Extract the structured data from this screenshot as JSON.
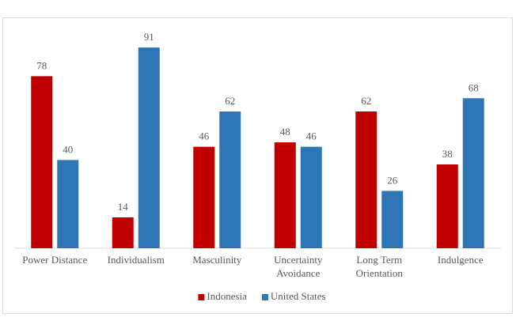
{
  "chart_data": {
    "type": "bar",
    "categories": [
      "Power Distance",
      "Individualism",
      "Masculinity",
      "Uncertainty Avoidance",
      "Long Term Orientation",
      "Indulgence"
    ],
    "series": [
      {
        "name": "Indonesia",
        "color": "#c00000",
        "values": [
          78,
          14,
          46,
          48,
          62,
          38
        ]
      },
      {
        "name": "United States",
        "color": "#2e75b6",
        "values": [
          40,
          91,
          62,
          46,
          26,
          68
        ]
      }
    ],
    "ylim": [
      0,
      100
    ],
    "grid": false,
    "data_labels": true,
    "legend": "bottom"
  }
}
